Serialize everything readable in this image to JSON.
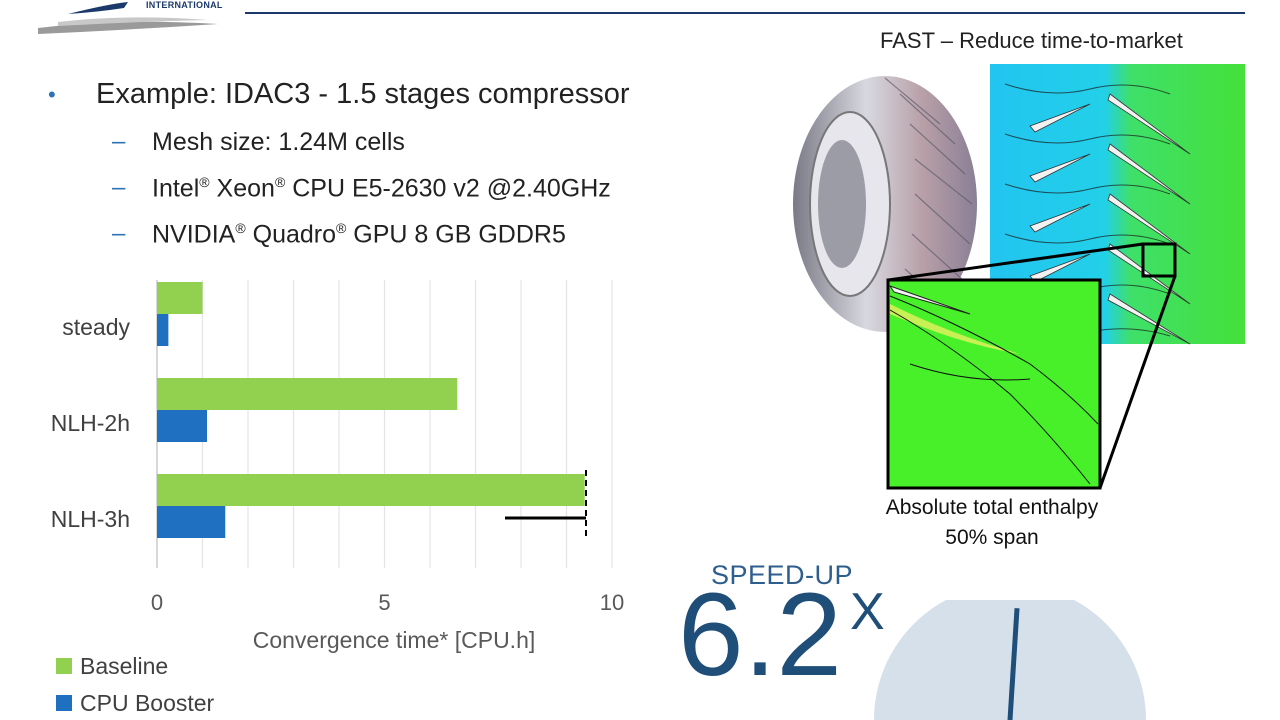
{
  "header": {
    "logo_text": "INTERNATIONAL",
    "subtitle": "FAST – Reduce time-to-market"
  },
  "bullets": {
    "main": "Example: IDAC3 - 1.5 stages compressor",
    "subs": [
      {
        "text": "Mesh size: 1.24M cells"
      },
      {
        "pre": "Intel",
        "mid": " Xeon",
        "post": " CPU E5-2630 v2 @2.40GHz"
      },
      {
        "pre": "NVIDIA",
        "mid": " Quadro",
        "post": " GPU 8 GB GDDR5"
      }
    ],
    "reg": "®"
  },
  "chart_data": {
    "type": "bar",
    "orientation": "horizontal",
    "categories": [
      "steady",
      "NLH-2h",
      "NLH-3h"
    ],
    "series": [
      {
        "name": "Baseline",
        "color": "#92d050",
        "values": [
          1.0,
          6.6,
          9.4
        ]
      },
      {
        "name": "CPU Booster",
        "color": "#1f70c1",
        "values": [
          0.25,
          1.1,
          1.5
        ]
      }
    ],
    "xlabel": "Convergence time* [CPU.h]",
    "xlim": [
      0,
      10
    ],
    "xticks": [
      "0",
      "5",
      "10"
    ],
    "grid": true,
    "legend_position": "bottom-left"
  },
  "cfd": {
    "caption_line1": "Absolute total enthalpy",
    "caption_line2": "50% span"
  },
  "speedup": {
    "label": "SPEED-UP",
    "value": "6.2",
    "suffix": "X",
    "gauge_fraction": 0.52
  }
}
